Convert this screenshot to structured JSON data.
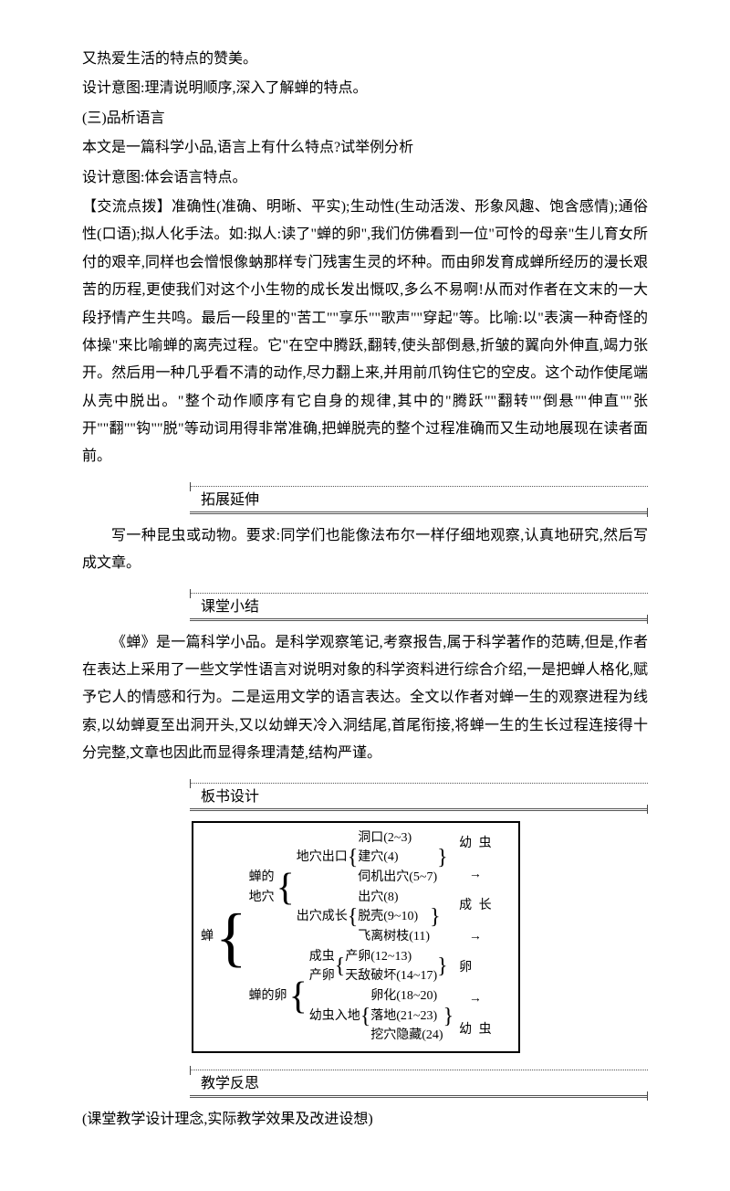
{
  "intro": {
    "p1": "又热爱生活的特点的赞美。",
    "p2": "设计意图:理清说明顺序,深入了解蝉的特点。",
    "p3": "(三)品析语言",
    "p4": "本文是一篇科学小品,语言上有什么特点?试举例分析",
    "p5": "设计意图:体会语言特点。"
  },
  "jiaoliu": "【交流点拨】准确性(准确、明晰、平实);生动性(生动活泼、形象风趣、饱含感情);通俗性(口语);拟人化手法。如:拟人:读了\"蝉的卵\",我们仿佛看到一位\"可怜的母亲\"生儿育女所付的艰辛,同样也会憎恨像蚋那样专门残害生灵的坏种。而由卵发育成蝉所经历的漫长艰苦的历程,更使我们对这个小生物的成长发出慨叹,多么不易啊!从而对作者在文末的一大段抒情产生共鸣。最后一段里的\"苦工\"\"享乐\"\"歌声\"\"穿起\"等。比喻:以\"表演一种奇怪的体操\"来比喻蝉的离壳过程。它\"在空中腾跃,翻转,使头部倒悬,折皱的翼向外伸直,竭力张开。然后用一种几乎看不清的动作,尽力翻上来,并用前爪钩住它的空皮。这个动作使尾端从壳中脱出。\"整个动作顺序有它自身的规律,其中的\"腾跃\"\"翻转\"\"倒悬\"\"伸直\"\"张开\"\"翻\"\"钩\"\"脱\"等动词用得非常准确,把蝉脱壳的整个过程准确而又生动地展现在读者面前。",
  "sections": {
    "s1": "拓展延伸",
    "s2": "课堂小结",
    "s3": "板书设计",
    "s4": "教学反思"
  },
  "tuozhan": "写一种昆虫或动物。要求:同学们也能像法布尔一样仔细地观察,认真地研究,然后写成文章。",
  "ketang": "《蝉》是一篇科学小品。是科学观察笔记,考察报告,属于科学著作的范畴,但是,作者在表达上采用了一些文学性语言对说明对象的科学资料进行综合介绍,一是把蝉人格化,赋予它人的情感和行为。二是运用文学的语言表达。全文以作者对蝉一生的观察进程为线索,以幼蝉夏至出洞开头,又以幼蝉天冷入洞结尾,首尾衔接,将蝉一生的生长过程连接得十分完整,文章也因此而显得条理清楚,结构严谨。",
  "board": {
    "root": "蝉",
    "g1_title1": "蝉的",
    "g1_title2": "地穴",
    "g1a_label": "地穴出口",
    "g1a_items": [
      "洞口(2~3)",
      "建穴(4)",
      "伺机出穴(5~7)"
    ],
    "g1b_label": "出穴成长",
    "g1b_items": [
      "出穴(8)",
      "脱壳(9~10)",
      "飞离树枝(11)"
    ],
    "g2_title": "蝉的卵",
    "g2a_label1": "成虫",
    "g2a_label2": "产卵",
    "g2a_items": [
      "产卵(12~13)",
      "天敌破坏(14~17)"
    ],
    "g2b_label": "幼虫入地",
    "g2b_items": [
      "卵化(18~20)",
      "落地(21~23)",
      "挖穴隐藏(24)"
    ],
    "right": [
      "幼  虫",
      "→",
      "成  长",
      "→",
      "卵",
      "→",
      "幼  虫"
    ]
  },
  "fansi": "(课堂教学设计理念,实际教学效果及改进设想)"
}
